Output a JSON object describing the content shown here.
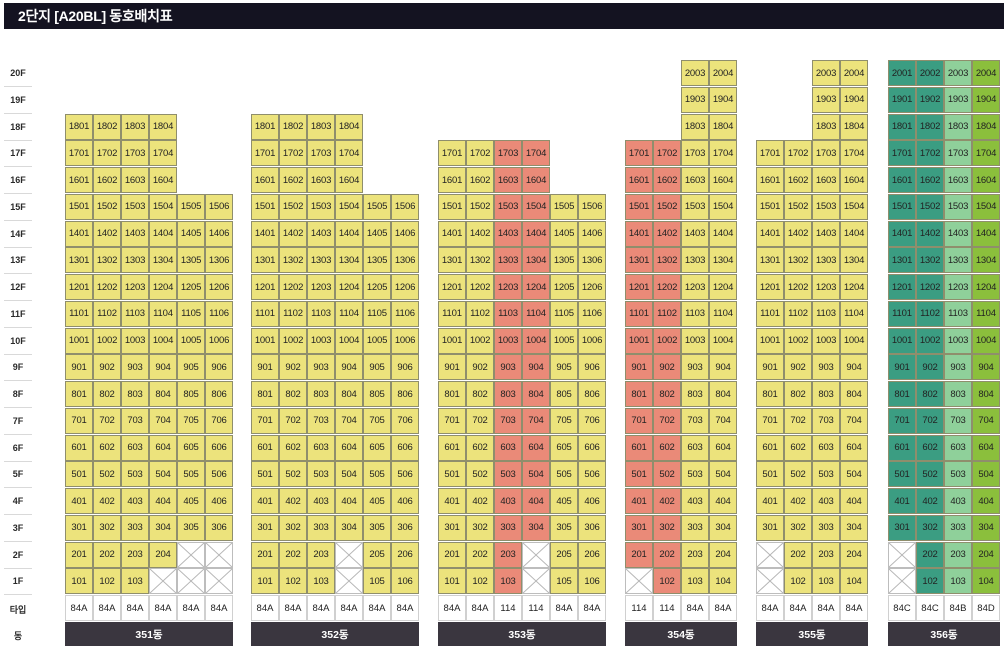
{
  "page": {
    "title": "2단지 [A20BL] 동호배치표"
  },
  "floor_labels": [
    "20F",
    "19F",
    "18F",
    "17F",
    "16F",
    "15F",
    "14F",
    "13F",
    "12F",
    "11F",
    "10F",
    "9F",
    "8F",
    "7F",
    "6F",
    "5F",
    "4F",
    "3F",
    "2F",
    "1F"
  ],
  "type_row_label": "타입",
  "building_row_label": "동",
  "colors": {
    "yellow": "#ece37c",
    "red": "#ea8a78",
    "teal": "#3b9d82",
    "light_green": "#8fd09a",
    "lime": "#8bbf3c",
    "building_bar": "#3a363f"
  },
  "buildings": [
    {
      "name": "351동",
      "floors": [
        18,
        18,
        18,
        18,
        15,
        15
      ],
      "types": [
        "84A",
        "84A",
        "84A",
        "84A",
        "84A",
        "84A"
      ],
      "colors": [
        "yellow",
        "yellow",
        "yellow",
        "yellow",
        "yellow",
        "yellow"
      ],
      "empty_units": [
        "104",
        "105",
        "106",
        "205",
        "206"
      ]
    },
    {
      "name": "352동",
      "floors": [
        18,
        18,
        18,
        18,
        15,
        15
      ],
      "types": [
        "84A",
        "84A",
        "84A",
        "84A",
        "84A",
        "84A"
      ],
      "colors": [
        "yellow",
        "yellow",
        "yellow",
        "yellow",
        "yellow",
        "yellow"
      ],
      "empty_units": [
        "104",
        "204"
      ]
    },
    {
      "name": "353동",
      "floors": [
        17,
        17,
        17,
        17,
        15,
        15
      ],
      "types": [
        "84A",
        "84A",
        "114",
        "114",
        "84A",
        "84A"
      ],
      "colors": [
        "yellow",
        "yellow",
        "red",
        "red",
        "yellow",
        "yellow"
      ],
      "empty_units": [
        "104",
        "204"
      ]
    },
    {
      "name": "354동",
      "floors": [
        17,
        17,
        20,
        20
      ],
      "types": [
        "114",
        "114",
        "84A",
        "84A"
      ],
      "colors": [
        "red",
        "red",
        "yellow",
        "yellow"
      ],
      "empty_units": [
        "101"
      ]
    },
    {
      "name": "355동",
      "floors": [
        17,
        17,
        20,
        20
      ],
      "types": [
        "84A",
        "84A",
        "84A",
        "84A"
      ],
      "colors": [
        "yellow",
        "yellow",
        "yellow",
        "yellow"
      ],
      "empty_units": [
        "101",
        "201"
      ]
    },
    {
      "name": "356동",
      "floors": [
        20,
        20,
        20,
        20
      ],
      "types": [
        "84C",
        "84C",
        "84B",
        "84D"
      ],
      "colors": [
        "teal",
        "teal",
        "light_green",
        "lime"
      ],
      "empty_units": [
        "101",
        "201"
      ]
    }
  ]
}
